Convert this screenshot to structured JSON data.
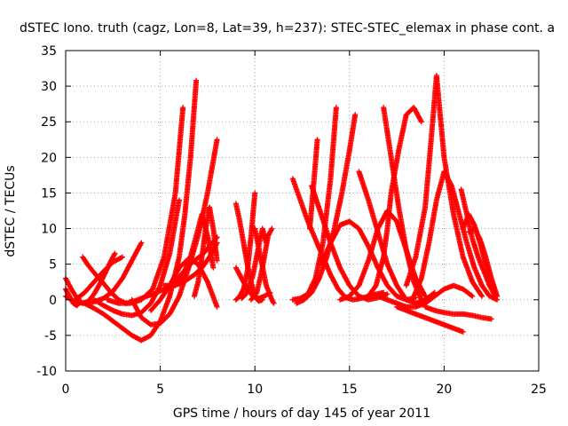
{
  "chart_data": {
    "type": "scatter",
    "title": "dSTEC Iono. truth (cagz, Lon=8, Lat=39, h=237): STEC-STEC_elemax in phase cont. a",
    "xlabel": "GPS time / hours of day 145 of year 2011",
    "ylabel": "dSTEC  / TECUs",
    "xlim": [
      0,
      25
    ],
    "ylim": [
      -10,
      35
    ],
    "x_ticks": [
      "0",
      "5",
      "10",
      "15",
      "20",
      "25"
    ],
    "y_ticks": [
      "-10",
      "-5",
      "0",
      "5",
      "10",
      "15",
      "20",
      "25",
      "30",
      "35"
    ],
    "grid": true,
    "legend": "none",
    "marker": "plus",
    "color": "#ff0000",
    "series": [
      {
        "x": [
          0.0,
          0.3,
          0.6,
          0.9,
          1.2,
          1.5,
          1.8,
          2.1,
          2.4,
          2.6
        ],
        "y": [
          3.0,
          1.5,
          0.2,
          -0.5,
          -0.2,
          0.8,
          2.2,
          3.8,
          5.5,
          6.5
        ]
      },
      {
        "x": [
          0.0,
          0.5,
          1.0,
          1.5,
          2.0,
          2.5,
          3.0,
          3.5,
          4.0
        ],
        "y": [
          0.5,
          -0.3,
          -0.5,
          -0.3,
          0.2,
          1.2,
          3.0,
          5.5,
          8.0
        ]
      },
      {
        "x": [
          0.0,
          0.2,
          0.4,
          0.6,
          0.8
        ],
        "y": [
          1.5,
          0.5,
          -0.5,
          -0.8,
          -0.2
        ]
      },
      {
        "x": [
          0.9,
          1.2,
          1.6,
          2.0,
          2.4,
          2.8,
          3.2,
          3.6,
          4.0,
          4.4,
          4.8,
          5.2,
          5.6,
          6.0,
          6.4,
          6.8,
          7.2,
          7.6,
          8.0
        ],
        "y": [
          6.0,
          4.8,
          3.5,
          2.3,
          1.0,
          0.0,
          -0.5,
          -0.2,
          0.2,
          0.6,
          1.0,
          1.5,
          2.2,
          3.2,
          4.5,
          5.5,
          6.3,
          7.5,
          8.8
        ]
      },
      {
        "x": [
          0.5,
          1.0,
          1.5,
          2.0,
          2.5,
          3.0
        ],
        "y": [
          0.0,
          1.0,
          2.5,
          4.0,
          5.3,
          6.0
        ]
      },
      {
        "x": [
          1.0,
          1.5,
          2.0,
          2.5,
          3.0,
          3.5,
          4.0,
          4.5,
          5.0,
          5.5,
          6.0,
          6.3,
          6.6,
          6.9
        ],
        "y": [
          -0.5,
          -1.2,
          -2.0,
          -3.0,
          -4.0,
          -5.0,
          -5.7,
          -5.0,
          -3.0,
          0.5,
          6.0,
          12.0,
          20.0,
          30.8
        ]
      },
      {
        "x": [
          1.5,
          2.0,
          2.5,
          3.0,
          3.5,
          4.0,
          4.5,
          5.0,
          5.5,
          6.0
        ],
        "y": [
          0.0,
          -0.8,
          -1.5,
          -2.0,
          -2.2,
          -1.8,
          -0.5,
          2.0,
          6.5,
          14.0
        ]
      },
      {
        "x": [
          2.2,
          2.8,
          3.4,
          4.0,
          4.6,
          5.2,
          5.8,
          6.2
        ],
        "y": [
          0.0,
          -0.5,
          -0.5,
          0.0,
          1.5,
          6.0,
          15.0,
          27.0
        ]
      },
      {
        "x": [
          3.5,
          4.0,
          4.5,
          5.0,
          5.5,
          6.0,
          6.5,
          7.0,
          7.5,
          8.0
        ],
        "y": [
          0.0,
          -2.5,
          -3.5,
          -3.3,
          -2.0,
          0.5,
          4.5,
          9.0,
          15.0,
          22.5
        ]
      },
      {
        "x": [
          4.5,
          5.0,
          5.5,
          6.0,
          6.5,
          7.0,
          7.5,
          8.0
        ],
        "y": [
          -1.5,
          0.0,
          2.0,
          4.5,
          5.8,
          5.0,
          2.5,
          -1.0
        ]
      },
      {
        "x": [
          5.2,
          5.6,
          6.0,
          6.4,
          6.8,
          7.2,
          7.6,
          8.0
        ],
        "y": [
          2.0,
          2.0,
          2.2,
          2.8,
          3.5,
          4.5,
          6.0,
          8.0
        ]
      },
      {
        "x": [
          5.8,
          6.2,
          6.6,
          6.9,
          7.2,
          7.5,
          7.8
        ],
        "y": [
          2.0,
          3.5,
          6.0,
          9.0,
          12.0,
          9.0,
          4.5
        ]
      },
      {
        "x": [
          6.8,
          7.0,
          7.2,
          7.4,
          7.6,
          7.8,
          8.0
        ],
        "y": [
          0.5,
          2.5,
          6.0,
          10.0,
          13.0,
          10.0,
          5.5
        ]
      },
      {
        "x": [
          9.0,
          9.3,
          9.6,
          9.9,
          10.2,
          10.5,
          10.8
        ],
        "y": [
          4.5,
          3.0,
          1.5,
          0.5,
          0.2,
          0.5,
          1.0
        ]
      },
      {
        "x": [
          9.0,
          9.2,
          9.4,
          9.6,
          9.8,
          10.0,
          10.2,
          10.4
        ],
        "y": [
          13.5,
          11.0,
          8.0,
          5.0,
          2.5,
          0.5,
          -0.2,
          0.0
        ]
      },
      {
        "x": [
          9.0,
          9.2,
          9.4,
          9.6,
          9.8,
          10.0
        ],
        "y": [
          0.0,
          0.5,
          1.5,
          4.0,
          9.0,
          15.0
        ]
      },
      {
        "x": [
          9.3,
          9.6,
          9.9,
          10.2,
          10.4,
          10.6
        ],
        "y": [
          0.2,
          1.0,
          3.5,
          7.5,
          10.0,
          8.0
        ]
      },
      {
        "x": [
          9.8,
          10.1,
          10.4,
          10.7,
          10.9
        ],
        "y": [
          0.0,
          1.0,
          4.5,
          9.0,
          10.0
        ]
      },
      {
        "x": [
          10.0,
          10.3,
          10.6,
          10.9,
          11.0
        ],
        "y": [
          10.0,
          6.0,
          2.0,
          0.0,
          -0.5
        ]
      },
      {
        "x": [
          12.0,
          12.4,
          12.8,
          13.2,
          13.6,
          14.0,
          14.4,
          14.8,
          15.2,
          15.6,
          16.0,
          16.4,
          16.8
        ],
        "y": [
          17.0,
          14.0,
          11.0,
          8.5,
          6.0,
          3.5,
          1.5,
          0.3,
          0.0,
          0.2,
          0.5,
          0.8,
          1.0
        ]
      },
      {
        "x": [
          12.0,
          12.4,
          12.8,
          13.2,
          13.6,
          14.0,
          14.3
        ],
        "y": [
          0.0,
          0.2,
          0.8,
          3.0,
          8.0,
          17.0,
          27.0
        ]
      },
      {
        "x": [
          12.2,
          12.6,
          13.0,
          13.4,
          13.8,
          14.2,
          14.6,
          15.0,
          15.3
        ],
        "y": [
          -0.5,
          0.0,
          1.0,
          3.0,
          6.0,
          10.0,
          15.0,
          21.0,
          26.0
        ]
      },
      {
        "x": [
          13.0,
          13.5,
          14.0,
          14.5,
          15.0,
          15.5,
          16.0,
          16.5,
          17.0
        ],
        "y": [
          16.0,
          12.0,
          8.0,
          4.5,
          2.0,
          0.5,
          0.0,
          0.3,
          0.8
        ]
      },
      {
        "x": [
          12.9,
          13.1,
          13.3
        ],
        "y": [
          10.0,
          16.0,
          22.5
        ]
      },
      {
        "x": [
          13.5,
          14.0,
          14.5,
          15.0,
          15.5,
          16.0,
          16.5,
          17.0,
          17.5,
          18.0,
          18.5
        ],
        "y": [
          5.0,
          8.0,
          10.5,
          11.0,
          10.0,
          7.5,
          4.5,
          2.0,
          0.5,
          0.0,
          0.3
        ]
      },
      {
        "x": [
          14.5,
          15.0,
          15.5,
          16.0,
          16.5,
          17.0,
          17.5,
          18.0,
          18.5,
          19.0
        ],
        "y": [
          0.0,
          0.5,
          2.0,
          5.5,
          10.0,
          12.5,
          11.0,
          7.0,
          3.0,
          0.5
        ]
      },
      {
        "x": [
          15.5,
          16.0,
          16.5,
          17.0,
          17.5,
          18.0,
          18.5,
          19.0,
          19.5
        ],
        "y": [
          18.0,
          14.0,
          9.5,
          5.0,
          2.0,
          0.0,
          -0.5,
          0.0,
          1.0
        ]
      },
      {
        "x": [
          16.0,
          16.4,
          16.8,
          17.0,
          17.2,
          17.6,
          18.0,
          18.4,
          18.8
        ],
        "y": [
          0.5,
          2.0,
          6.0,
          10.0,
          15.0,
          21.0,
          26.0,
          27.0,
          25.0
        ]
      },
      {
        "x": [
          16.5,
          17.0,
          17.5,
          18.0,
          18.5,
          19.0,
          19.5,
          20.0,
          20.5,
          21.0,
          21.5
        ],
        "y": [
          0.5,
          0.0,
          -0.5,
          -1.0,
          -1.0,
          -0.5,
          0.5,
          1.5,
          2.0,
          1.5,
          0.5
        ]
      },
      {
        "x": [
          16.8,
          17.2,
          17.6,
          18.0,
          18.4,
          18.8
        ],
        "y": [
          27.0,
          20.0,
          13.0,
          7.0,
          2.5,
          0.0
        ]
      },
      {
        "x": [
          17.5,
          18.0,
          18.5,
          19.0,
          19.5,
          20.0,
          20.5,
          21.0
        ],
        "y": [
          -1.0,
          -1.5,
          -2.0,
          -2.5,
          -3.0,
          -3.5,
          -4.0,
          -4.5
        ]
      },
      {
        "x": [
          18.0,
          18.5,
          19.0,
          19.3,
          19.6,
          20.0,
          20.5,
          21.0,
          21.5,
          22.0
        ],
        "y": [
          2.0,
          6.0,
          13.0,
          22.0,
          31.5,
          20.0,
          12.0,
          6.0,
          2.5,
          0.5
        ]
      },
      {
        "x": [
          18.4,
          18.8,
          19.2,
          19.6,
          20.0,
          20.4,
          20.8,
          21.2,
          21.6,
          22.0,
          22.4,
          22.8
        ],
        "y": [
          0.5,
          3.0,
          8.0,
          14.0,
          18.0,
          16.0,
          12.0,
          8.0,
          4.5,
          2.0,
          0.5,
          0.0
        ]
      },
      {
        "x": [
          19.0,
          19.5,
          20.0,
          20.5,
          21.0,
          21.5,
          22.0,
          22.5
        ],
        "y": [
          -1.0,
          -1.5,
          -1.8,
          -2.0,
          -2.0,
          -2.2,
          -2.5,
          -2.7
        ]
      },
      {
        "x": [
          20.9,
          21.2,
          21.5,
          21.8,
          22.1,
          22.4,
          22.7
        ],
        "y": [
          15.5,
          12.0,
          8.5,
          6.0,
          4.0,
          2.0,
          0.5
        ]
      },
      {
        "x": [
          21.0,
          21.3,
          21.6,
          21.9,
          22.2,
          22.5,
          22.8
        ],
        "y": [
          10.0,
          12.0,
          10.5,
          8.0,
          5.0,
          2.5,
          0.5
        ]
      },
      {
        "x": [
          21.3,
          21.6,
          21.9,
          22.2,
          22.5,
          22.8
        ],
        "y": [
          9.5,
          10.0,
          8.5,
          6.0,
          3.0,
          0.5
        ]
      }
    ]
  }
}
